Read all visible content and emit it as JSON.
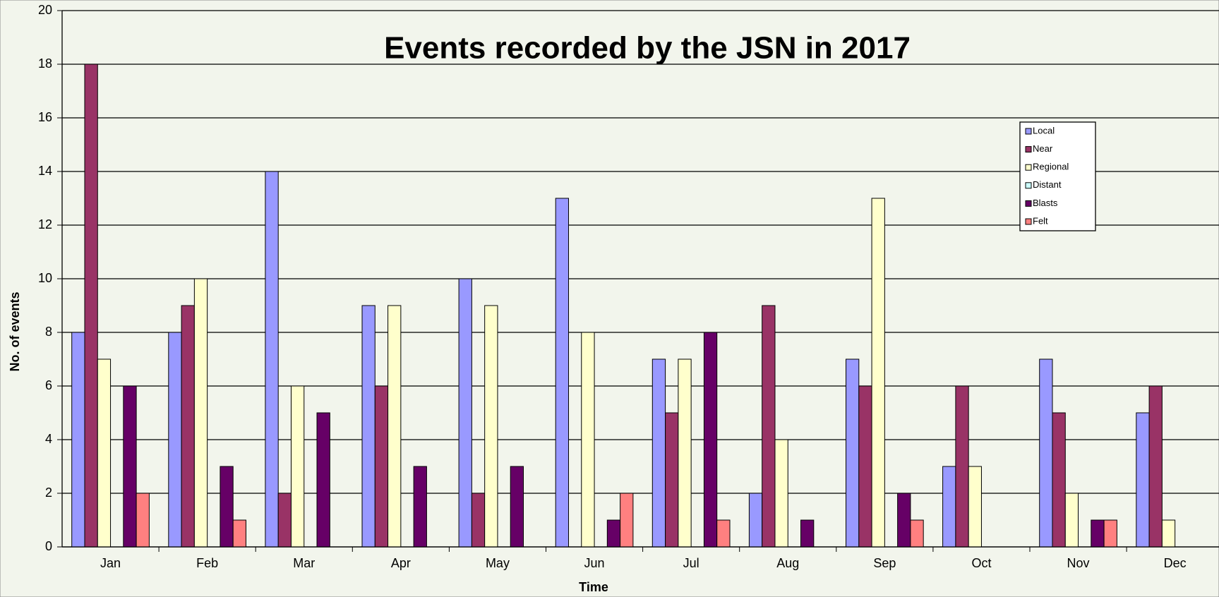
{
  "chart_data": {
    "type": "bar",
    "title": "Events recorded by the JSN in 2017",
    "xlabel": "Time",
    "ylabel": "No. of events",
    "categories": [
      "Jan",
      "Feb",
      "Mar",
      "Apr",
      "May",
      "Jun",
      "Jul",
      "Aug",
      "Sep",
      "Oct",
      "Nov",
      "Dec"
    ],
    "series": [
      {
        "name": "Local",
        "color": "#9999ff",
        "values": [
          8,
          8,
          14,
          9,
          10,
          13,
          7,
          2,
          7,
          3,
          7,
          5
        ]
      },
      {
        "name": "Near",
        "color": "#993366",
        "values": [
          18,
          9,
          2,
          6,
          2,
          0,
          5,
          9,
          6,
          6,
          5,
          6
        ]
      },
      {
        "name": "Regional",
        "color": "#ffffcc",
        "values": [
          7,
          10,
          6,
          9,
          9,
          8,
          7,
          4,
          13,
          3,
          2,
          1
        ]
      },
      {
        "name": "Distant",
        "color": "#ccffff",
        "values": [
          0,
          0,
          0,
          0,
          0,
          0,
          0,
          0,
          0,
          0,
          0,
          0
        ]
      },
      {
        "name": "Blasts",
        "color": "#660066",
        "values": [
          6,
          3,
          5,
          3,
          3,
          1,
          8,
          1,
          2,
          0,
          1,
          0
        ]
      },
      {
        "name": "Felt",
        "color": "#ff8080",
        "values": [
          2,
          1,
          0,
          0,
          0,
          2,
          1,
          0,
          1,
          0,
          1,
          0
        ]
      }
    ],
    "ylim": [
      0,
      20
    ],
    "yticks": [
      0,
      2,
      4,
      6,
      8,
      10,
      12,
      14,
      16,
      18,
      20
    ],
    "grid": true,
    "legend": "upper right"
  }
}
